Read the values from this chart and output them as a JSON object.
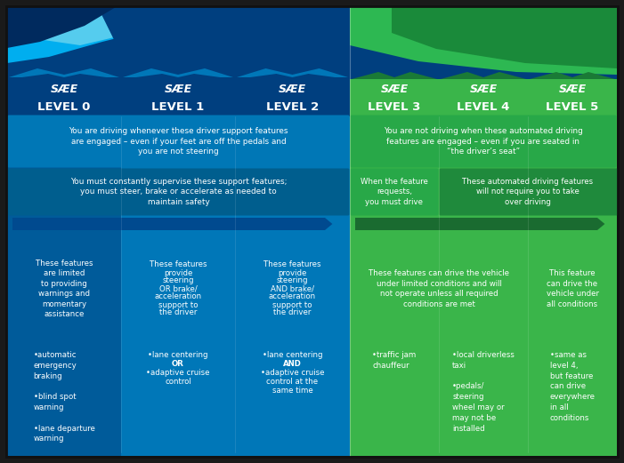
{
  "blue_dark": "#003f7f",
  "blue_panel": "#0077b8",
  "blue_light": "#00aeef",
  "blue_navy": "#002a5e",
  "blue_arrow": "#004a8f",
  "blue_col0": "#005b9a",
  "green_panel": "#3ab54a",
  "green_dark": "#1a7a36",
  "green_arrow": "#1a6b30",
  "outer_bg": "#1a1a1a",
  "white": "#ffffff",
  "levels": [
    "LEVEL 0",
    "LEVEL 1",
    "LEVEL 2",
    "LEVEL 3",
    "LEVEL 4",
    "LEVEL 5"
  ],
  "blue_header": "You are driving whenever these driver support features\nare engaged – even if your feet are off the pedals and\nyou are not steering",
  "blue_subheader": "You must constantly supervise these support features;\nyou must steer, brake or accelerate as needed to\nmaintain safety",
  "green_header": "You are not driving when these automated driving\nfeatures are engaged – even if you are seated in\n“the driver’s seat”",
  "green_sub_left": "When the feature\nrequests,\nyou must drive",
  "green_sub_right": "These automated driving features\nwill not require you to take\nover driving",
  "feat0": "These features\nare limited\nto providing\nwarnings and\nmomentary\nassistance",
  "feat1": "These features\nprovide\nsteering\nOR brake/\nacceleration\nsupport to\nthe driver",
  "feat2": "These features\nprovide\nsteering\nAND brake/\nacceleration\nsupport to\nthe driver",
  "feat34": "These features can drive the vehicle\nunder limited conditions and will\nnot operate unless all required\nconditions are met",
  "feat5": "This feature\ncan drive the\nvehicle under\nall conditions",
  "ex0": "•automatic\nemergency\nbraking\n\n•blind spot\nwarning\n\n•lane departure\nwarning",
  "ex1_lines": [
    "•lane centering",
    "OR",
    "•adaptive cruise",
    "control"
  ],
  "ex2_lines": [
    "•lane centering",
    "AND",
    "•adaptive cruise",
    "control at the",
    "same time"
  ],
  "ex3": "•traffic jam\nchauffeur",
  "ex4": "•local driverless\ntaxi\n\n•pedals/\nsteering\nwheel may or\nmay not be\ninstalled",
  "ex5": "•same as\nlevel 4,\nbut feature\ncan drive\neverywhere\nin all\nconditions"
}
